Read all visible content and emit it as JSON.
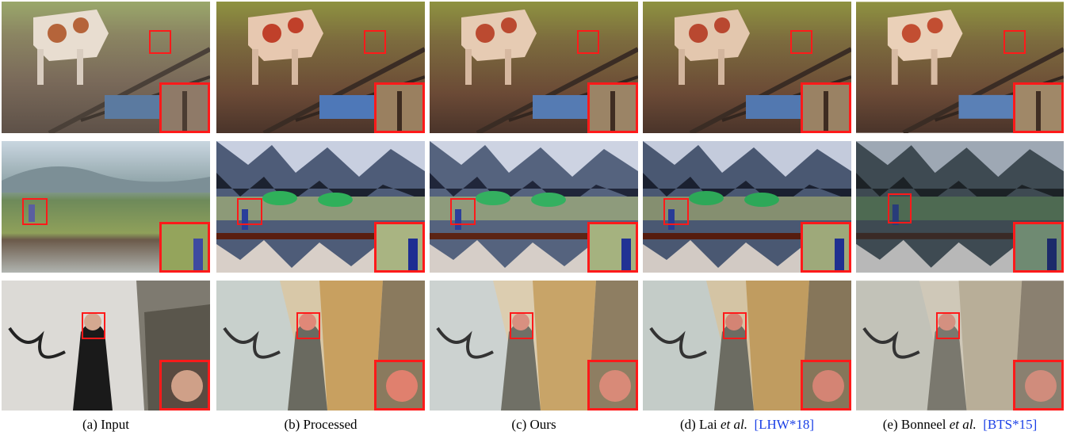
{
  "figure": {
    "columns": [
      {
        "id": "input",
        "label": "(a) Input",
        "cite": ""
      },
      {
        "id": "processed",
        "label": "(b) Processed",
        "cite": ""
      },
      {
        "id": "ours",
        "label": "(c) Ours",
        "cite": ""
      },
      {
        "id": "lai",
        "label_prefix": "(d) Lai ",
        "label_italic": "et al.",
        "cite": "[LHW*18]"
      },
      {
        "id": "bonneel",
        "label_prefix": "(e) Bonneel ",
        "label_italic": "et al.",
        "cite": "[BTS*15]"
      }
    ],
    "rows": [
      {
        "id": "cow"
      },
      {
        "id": "rice-field"
      },
      {
        "id": "woman"
      }
    ],
    "colors": {
      "zoom_border": "#ff1a1a",
      "citation": "#1a3fe6"
    }
  }
}
